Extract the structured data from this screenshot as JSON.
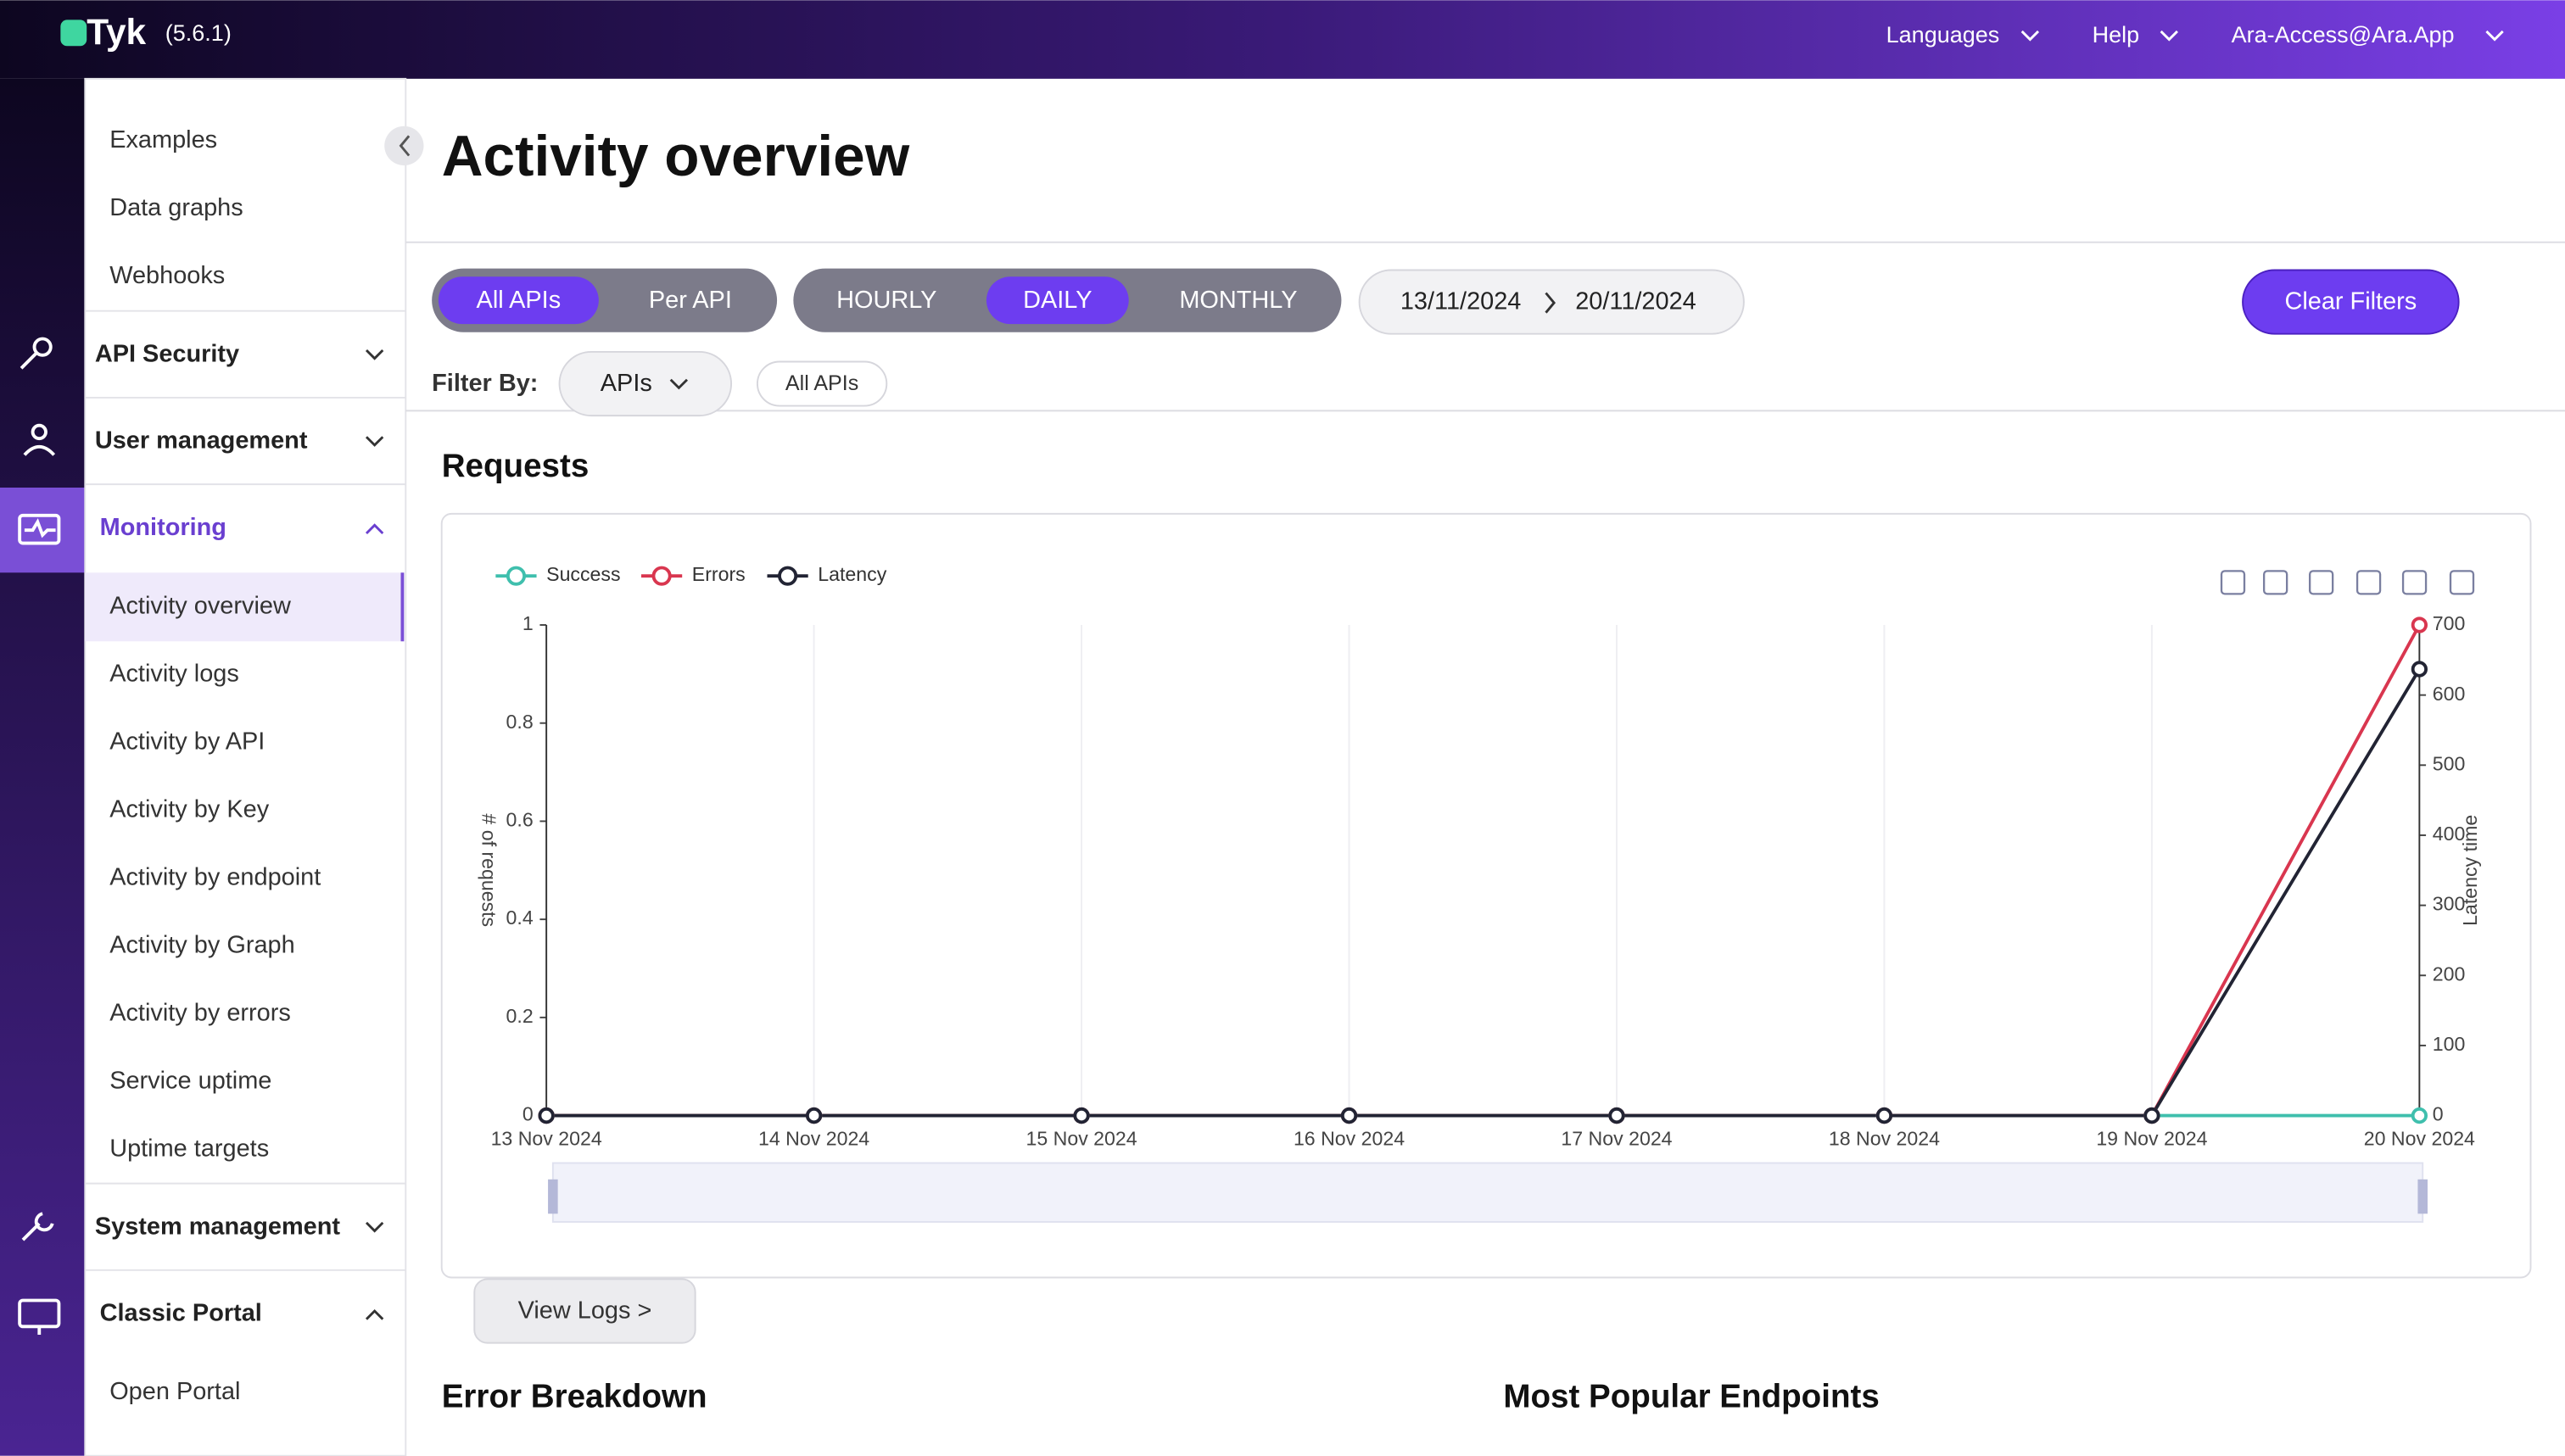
{
  "header": {
    "brand": "Tyk",
    "version": "(5.6.1)",
    "menu": [
      "Languages",
      "Help",
      "Ara-Access@Ara.App"
    ]
  },
  "sidebar": {
    "top_items": [
      "Examples",
      "Data graphs",
      "Webhooks"
    ],
    "groups": [
      {
        "title": "API Security"
      },
      {
        "title": "User management"
      },
      {
        "title": "Monitoring",
        "items": [
          "Activity overview",
          "Activity logs",
          "Activity by API",
          "Activity by Key",
          "Activity by endpoint",
          "Activity by Graph",
          "Activity by errors",
          "Service uptime",
          "Uptime targets"
        ]
      },
      {
        "title": "System management"
      },
      {
        "title": "Classic Portal",
        "items": [
          "Open Portal"
        ]
      }
    ]
  },
  "page": {
    "title": "Activity overview",
    "scope_toggle": [
      "All APIs",
      "Per API"
    ],
    "period_toggle": [
      "HOURLY",
      "DAILY",
      "MONTHLY"
    ],
    "date_from": "13/11/2024",
    "date_to": "20/11/2024",
    "clear_button": "Clear Filters",
    "filter_label": "Filter By:",
    "filter_select": "APIs",
    "filter_chip": "All APIs",
    "section_title": "Requests",
    "view_logs": "View Logs >",
    "bottom_titles": [
      "Error Breakdown",
      "Most Popular Endpoints"
    ]
  },
  "chart_data": {
    "type": "line",
    "categories": [
      "13 Nov 2024",
      "14 Nov 2024",
      "15 Nov 2024",
      "16 Nov 2024",
      "17 Nov 2024",
      "18 Nov 2024",
      "19 Nov 2024",
      "20 Nov 2024"
    ],
    "y_label": "# of requests",
    "y2_label": "Latency time",
    "ylim": [
      0,
      1
    ],
    "yticks": [
      0,
      0.2,
      0.4,
      0.6,
      0.8,
      1
    ],
    "y2lim": [
      0,
      700
    ],
    "y2ticks": [
      0,
      100,
      200,
      300,
      400,
      500,
      600,
      700
    ],
    "series": [
      {
        "name": "Success",
        "color": "#3fbfad",
        "values": [
          0,
          0,
          0,
          0,
          0,
          0,
          0,
          0
        ]
      },
      {
        "name": "Errors",
        "color": "#d9364f",
        "axis": "y2",
        "values": [
          0,
          0,
          0,
          0,
          0,
          0,
          0,
          700
        ]
      },
      {
        "name": "Latency",
        "color": "#222434",
        "axis": "y2",
        "values": [
          0,
          0,
          0,
          0,
          0,
          0,
          0,
          637
        ]
      }
    ]
  }
}
